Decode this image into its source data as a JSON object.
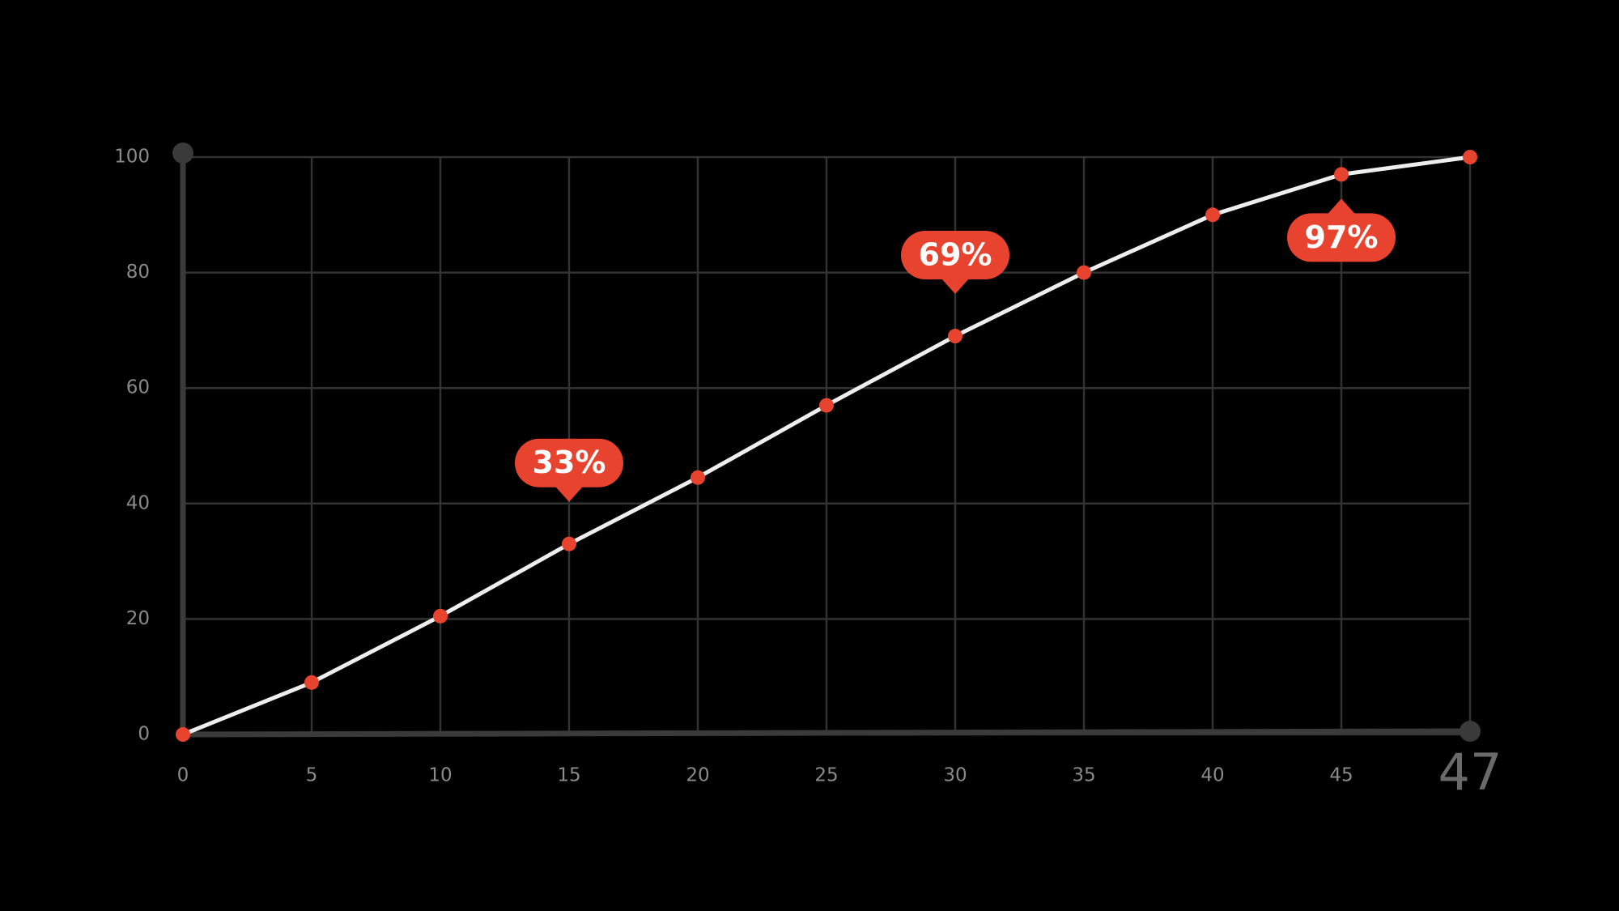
{
  "chart_data": {
    "type": "line",
    "categories": [
      "0",
      "5",
      "10",
      "15",
      "20",
      "25",
      "30",
      "35",
      "40",
      "45",
      "47"
    ],
    "values": [
      0,
      9,
      20.5,
      33,
      44.5,
      57,
      69,
      80,
      90,
      97,
      100
    ],
    "value_labels": [
      null,
      null,
      null,
      "33%",
      null,
      null,
      "69%",
      null,
      null,
      "97%",
      null
    ],
    "ylim": [
      0,
      100
    ],
    "yticks": [
      0,
      20,
      40,
      60,
      80,
      100
    ],
    "grid": true,
    "line_color": "#eeeeee",
    "point_color": "#e8432e",
    "label_color": "#e8432e"
  }
}
